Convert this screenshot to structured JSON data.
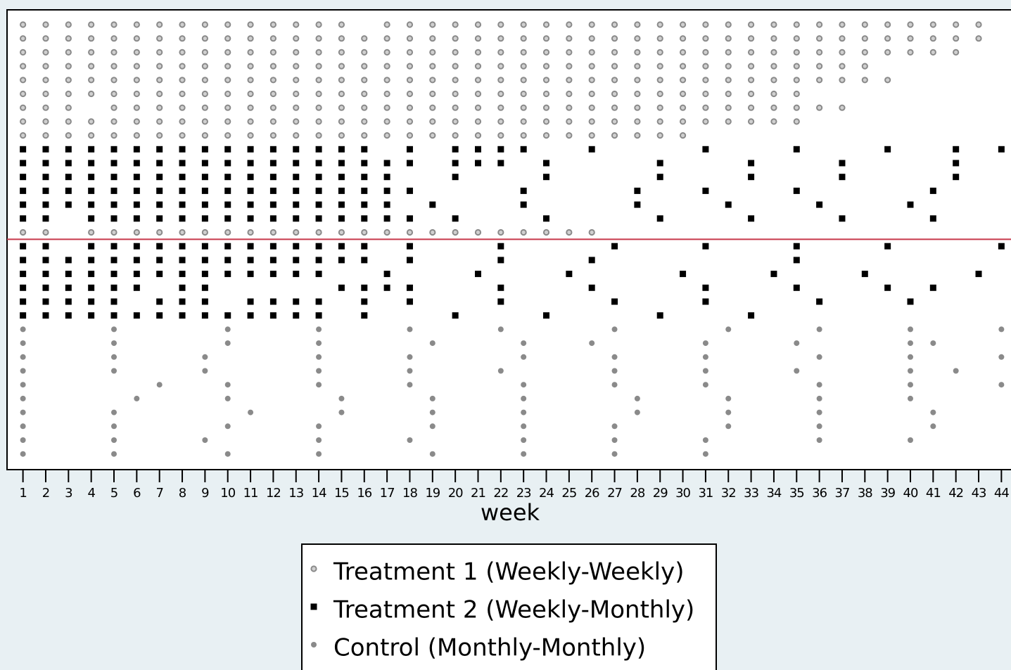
{
  "chart_data": {
    "type": "attendance",
    "x_label": "week",
    "xlim": [
      0.3,
      44.7
    ],
    "xticks": [
      1,
      2,
      3,
      4,
      5,
      6,
      7,
      8,
      9,
      10,
      11,
      12,
      13,
      14,
      15,
      16,
      17,
      18,
      19,
      20,
      21,
      22,
      23,
      24,
      25,
      26,
      27,
      28,
      29,
      30,
      31,
      32,
      33,
      34,
      35,
      36,
      37,
      38,
      39,
      40,
      41,
      42,
      43,
      44
    ],
    "series": [
      {
        "name": "Treatment 1 (Weekly-Weekly)",
        "color": "#8a8a8a",
        "marker": "circle"
      },
      {
        "name": "Treatment 2 (Weekly-Monthly)",
        "color": "#000000",
        "marker": "square"
      },
      {
        "name": "Control (Monthly-Monthly)",
        "color": "#8a8a8a",
        "marker": "dot"
      }
    ],
    "reference_line": {
      "color": "#c8384a"
    },
    "rows": [
      {
        "series": 0,
        "weeks": [
          1,
          2,
          3,
          4,
          5,
          6,
          7,
          8,
          9,
          10,
          11,
          12,
          13,
          14,
          15,
          17,
          18,
          19,
          20,
          21,
          22,
          23,
          24,
          25,
          26,
          27,
          28,
          29,
          30,
          31,
          32,
          33,
          34,
          35,
          36,
          37,
          38,
          39,
          40,
          41,
          42,
          43
        ]
      },
      {
        "series": 0,
        "weeks": [
          1,
          2,
          3,
          4,
          5,
          6,
          7,
          8,
          9,
          10,
          11,
          12,
          13,
          14,
          15,
          16,
          17,
          18,
          19,
          20,
          21,
          22,
          23,
          24,
          25,
          26,
          27,
          28,
          29,
          30,
          31,
          32,
          33,
          34,
          35,
          36,
          37,
          38,
          39,
          40,
          41,
          42,
          43
        ]
      },
      {
        "series": 0,
        "weeks": [
          1,
          2,
          3,
          4,
          5,
          6,
          7,
          8,
          9,
          10,
          11,
          12,
          13,
          14,
          15,
          16,
          17,
          18,
          19,
          20,
          21,
          22,
          23,
          24,
          25,
          26,
          27,
          28,
          29,
          30,
          31,
          32,
          33,
          34,
          35,
          36,
          37,
          38,
          39,
          40,
          41,
          42
        ]
      },
      {
        "series": 0,
        "weeks": [
          1,
          2,
          3,
          4,
          5,
          6,
          7,
          8,
          9,
          10,
          11,
          12,
          13,
          14,
          15,
          16,
          17,
          18,
          19,
          20,
          21,
          22,
          23,
          24,
          25,
          26,
          27,
          28,
          29,
          30,
          31,
          32,
          33,
          34,
          35,
          36,
          37,
          38
        ]
      },
      {
        "series": 0,
        "weeks": [
          1,
          2,
          3,
          4,
          5,
          6,
          7,
          8,
          9,
          10,
          11,
          12,
          13,
          14,
          15,
          16,
          17,
          18,
          19,
          20,
          21,
          22,
          23,
          24,
          25,
          26,
          27,
          28,
          29,
          30,
          31,
          32,
          33,
          34,
          35,
          36,
          37,
          38,
          39
        ]
      },
      {
        "series": 0,
        "weeks": [
          1,
          2,
          3,
          4,
          5,
          6,
          7,
          8,
          9,
          10,
          11,
          12,
          13,
          14,
          15,
          16,
          17,
          18,
          19,
          20,
          21,
          22,
          23,
          24,
          25,
          26,
          27,
          28,
          29,
          30,
          31,
          32,
          33,
          34,
          35
        ]
      },
      {
        "series": 0,
        "weeks": [
          1,
          2,
          3,
          5,
          6,
          7,
          8,
          9,
          10,
          11,
          12,
          13,
          14,
          15,
          16,
          17,
          18,
          19,
          20,
          21,
          22,
          23,
          24,
          25,
          26,
          27,
          28,
          29,
          30,
          31,
          32,
          33,
          34,
          35,
          36,
          37
        ]
      },
      {
        "series": 0,
        "weeks": [
          1,
          2,
          3,
          4,
          5,
          6,
          7,
          8,
          9,
          10,
          11,
          12,
          13,
          14,
          15,
          16,
          17,
          18,
          19,
          20,
          21,
          22,
          23,
          24,
          25,
          26,
          27,
          28,
          29,
          30,
          31,
          32,
          33,
          34,
          35
        ]
      },
      {
        "series": 0,
        "weeks": [
          1,
          2,
          3,
          4,
          5,
          6,
          7,
          8,
          9,
          10,
          11,
          12,
          13,
          14,
          15,
          16,
          17,
          18,
          19,
          20,
          21,
          22,
          23,
          24,
          25,
          26,
          27,
          28,
          29,
          30
        ]
      },
      {
        "series": 1,
        "weeks": [
          1,
          2,
          3,
          4,
          5,
          6,
          7,
          8,
          9,
          10,
          11,
          12,
          13,
          14,
          15,
          16,
          18,
          20,
          21,
          22,
          23,
          26,
          31,
          35,
          39,
          42,
          44
        ]
      },
      {
        "series": 1,
        "weeks": [
          1,
          2,
          3,
          4,
          5,
          6,
          7,
          8,
          9,
          10,
          11,
          12,
          13,
          14,
          15,
          16,
          17,
          18,
          20,
          21,
          22,
          24,
          29,
          33,
          37,
          42
        ]
      },
      {
        "series": 1,
        "weeks": [
          1,
          2,
          3,
          4,
          5,
          6,
          7,
          8,
          9,
          10,
          11,
          12,
          13,
          14,
          15,
          16,
          17,
          20,
          24,
          29,
          33,
          37,
          42
        ]
      },
      {
        "series": 1,
        "weeks": [
          1,
          2,
          3,
          4,
          5,
          6,
          7,
          8,
          9,
          10,
          11,
          12,
          13,
          14,
          15,
          16,
          17,
          18,
          23,
          28,
          31,
          35,
          41
        ]
      },
      {
        "series": 1,
        "weeks": [
          1,
          2,
          3,
          4,
          5,
          6,
          7,
          8,
          9,
          10,
          11,
          12,
          13,
          14,
          15,
          16,
          17,
          19,
          23,
          28,
          32,
          36,
          40
        ]
      },
      {
        "series": 1,
        "weeks": [
          1,
          2,
          4,
          5,
          6,
          7,
          8,
          9,
          10,
          11,
          12,
          13,
          14,
          15,
          16,
          17,
          18,
          20,
          24,
          29,
          33,
          37,
          41
        ]
      },
      {
        "series": 0,
        "weeks": [
          1,
          2,
          4,
          5,
          6,
          7,
          8,
          9,
          10,
          11,
          12,
          13,
          14,
          15,
          16,
          17,
          18,
          19,
          20,
          21,
          22,
          23,
          24,
          25,
          26
        ]
      },
      {
        "series": 1,
        "weeks": [
          1,
          2,
          4,
          5,
          6,
          7,
          8,
          9,
          10,
          11,
          12,
          13,
          14,
          15,
          16,
          18,
          22,
          27,
          31,
          35,
          39,
          44
        ]
      },
      {
        "series": 1,
        "weeks": [
          1,
          2,
          3,
          4,
          5,
          6,
          7,
          8,
          9,
          10,
          11,
          12,
          13,
          14,
          15,
          16,
          18,
          22,
          26,
          35
        ]
      },
      {
        "series": 1,
        "weeks": [
          1,
          2,
          3,
          4,
          5,
          6,
          7,
          8,
          9,
          10,
          11,
          12,
          13,
          14,
          17,
          21,
          25,
          30,
          34,
          38,
          43
        ]
      },
      {
        "series": 1,
        "weeks": [
          1,
          2,
          3,
          4,
          5,
          6,
          8,
          9,
          15,
          16,
          17,
          18,
          22,
          26,
          31,
          35,
          39,
          41
        ]
      },
      {
        "series": 1,
        "weeks": [
          1,
          2,
          3,
          4,
          5,
          7,
          8,
          9,
          11,
          12,
          13,
          14,
          16,
          18,
          22,
          27,
          31,
          36,
          40
        ]
      },
      {
        "series": 1,
        "weeks": [
          1,
          2,
          3,
          4,
          5,
          6,
          7,
          8,
          9,
          10,
          11,
          12,
          13,
          14,
          16,
          20,
          24,
          29,
          33
        ]
      },
      {
        "series": 2,
        "weeks": [
          1,
          5,
          10,
          14,
          18,
          22,
          27,
          32,
          36,
          40,
          44
        ]
      },
      {
        "series": 2,
        "weeks": [
          1,
          5,
          10,
          14,
          19,
          23,
          26,
          31,
          35,
          40,
          41
        ]
      },
      {
        "series": 2,
        "weeks": [
          1,
          5,
          9,
          14,
          18,
          23,
          27,
          31,
          36,
          40,
          44
        ]
      },
      {
        "series": 2,
        "weeks": [
          1,
          5,
          9,
          14,
          18,
          22,
          27,
          31,
          35,
          40,
          42
        ]
      },
      {
        "series": 2,
        "weeks": [
          1,
          7,
          10,
          14,
          18,
          23,
          27,
          31,
          36,
          40,
          44
        ]
      },
      {
        "series": 2,
        "weeks": [
          1,
          6,
          10,
          15,
          19,
          23,
          28,
          32,
          36,
          40
        ]
      },
      {
        "series": 2,
        "weeks": [
          1,
          5,
          11,
          15,
          19,
          23,
          28,
          32,
          36,
          41
        ]
      },
      {
        "series": 2,
        "weeks": [
          1,
          5,
          10,
          14,
          19,
          23,
          27,
          32,
          36,
          41
        ]
      },
      {
        "series": 2,
        "weeks": [
          1,
          5,
          9,
          14,
          18,
          23,
          27,
          31,
          36,
          40
        ]
      },
      {
        "series": 2,
        "weeks": [
          1,
          5,
          10,
          14,
          19,
          23,
          27,
          31
        ]
      }
    ]
  }
}
